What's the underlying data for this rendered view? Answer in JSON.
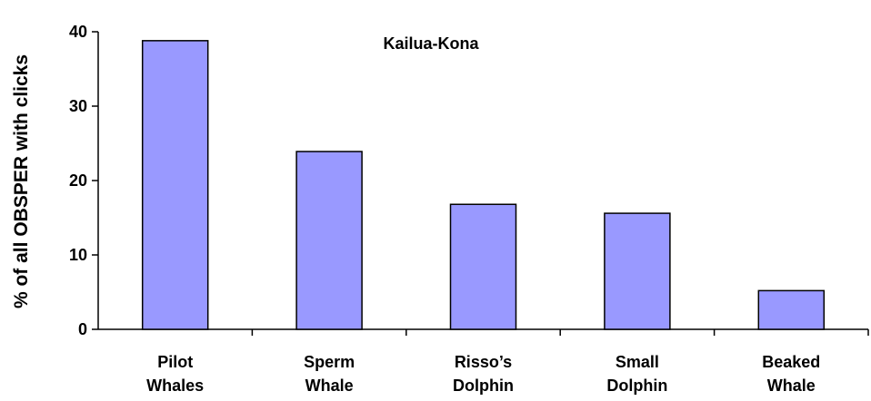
{
  "chart_data": {
    "type": "bar",
    "title": "Kailua-Kona",
    "ylabel": "% of all OBSPER with clicks",
    "categories": [
      "Pilot\nWhales",
      "Sperm\nWhale",
      "Risso’s\nDolphin",
      "Small\nDolphin",
      "Beaked\nWhale"
    ],
    "values": [
      38.8,
      23.9,
      16.8,
      15.6,
      5.2
    ],
    "color": "#9999ff",
    "ylim": [
      0,
      40
    ],
    "yticks": [
      0,
      10,
      20,
      30,
      40
    ],
    "grid": false
  }
}
